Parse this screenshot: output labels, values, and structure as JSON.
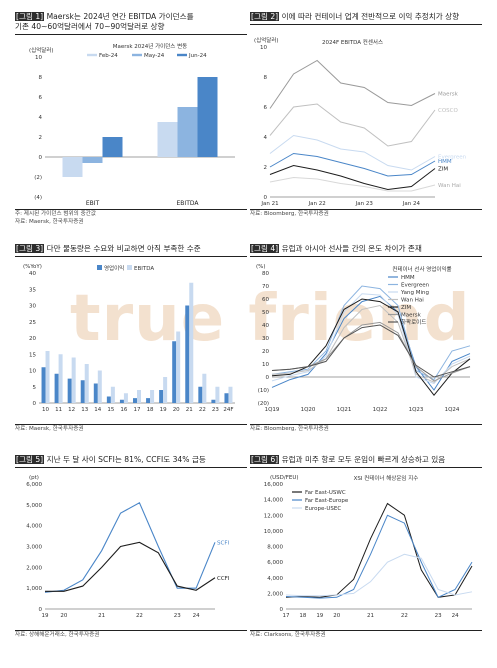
{
  "watermark": "true friend",
  "colors": {
    "dark": "#1d1d1d",
    "blue": "#4a86c8",
    "mid": "#8cb4e0",
    "light": "#c8daf0",
    "grey": "#9a9a9a",
    "lgrey": "#c0c0c0"
  },
  "panels": [
    {
      "tag": "[그림 1]",
      "title": "Maersk는 2024년 연간 EBITDA 가이던스를",
      "title2": "기존 40~60억달러에서 70~90억달러로 상향",
      "src": "주: 제시된 가이던스 범위의 중간값",
      "src2": "자료: Maersk, 한국투자증권"
    },
    {
      "tag": "[그림 2]",
      "title": "이에 따라 컨테이너 업계 전반적으로 이익 추정치가 상향",
      "src": "자료: Bloomberg, 한국투자증권"
    },
    {
      "tag": "[그림 3]",
      "title": "다만 물동량은 수요와 비교하면 아직 부족한 수준",
      "src": "자료: Maersk, 한국투자증권"
    },
    {
      "tag": "[그림 4]",
      "title": "유럽과 아시아 선사들 간의 온도 차이가 존재",
      "src": "자료: Bloomberg, 한국투자증권"
    },
    {
      "tag": "[그림 5]",
      "title": "지난 두 달 사이 SCFI는 81%, CCFI도 34% 급등",
      "src": "자료: 상해해운거래소, 한국투자증권"
    },
    {
      "tag": "[그림 6]",
      "title": "유럽과 미주 항로 모두 운임이 빠르게 상승하고 있음",
      "src": "자료: Clarksons, 한국투자증권"
    }
  ],
  "chart_data": [
    {
      "type": "bar",
      "ylabel": "(십억달러)",
      "legend_title": "Maersk 2024년 가이던스 변동",
      "categories": [
        "EBIT",
        "EBITDA"
      ],
      "ylim": [
        -4,
        10
      ],
      "yticks": [
        -4,
        -2,
        0,
        2,
        4,
        6,
        8,
        10
      ],
      "ytick_labels": [
        "(4)",
        "(2)",
        "0",
        "2",
        "4",
        "6",
        "8",
        "10"
      ],
      "series": [
        {
          "name": "Feb-24",
          "values": [
            -2.0,
            3.5
          ]
        },
        {
          "name": "May-24",
          "values": [
            -0.6,
            5.0
          ]
        },
        {
          "name": "Jun-24",
          "values": [
            2.0,
            8.0
          ]
        }
      ],
      "legend_position": "top"
    },
    {
      "type": "line",
      "ylabel": "(십억달러)",
      "subtitle": "2024F EBITDA 컨센서스",
      "ylim": [
        0,
        10
      ],
      "yticks": [
        0,
        2,
        4,
        6,
        8,
        10
      ],
      "x": [
        "Jan 21",
        "Jul 21",
        "Jan 22",
        "Jul 22",
        "Jan 23",
        "Jul 23",
        "Jan 24",
        "Jun 24"
      ],
      "xtick_labels": [
        "Jan 21",
        "Jan 22",
        "Jan 23",
        "Jan 24"
      ],
      "series": [
        {
          "name": "Maersk",
          "values": [
            5.9,
            8.2,
            9.1,
            7.6,
            7.3,
            6.3,
            6.1,
            6.9
          ]
        },
        {
          "name": "COSCO",
          "values": [
            4.1,
            6.0,
            6.2,
            5.0,
            4.6,
            3.4,
            3.7,
            5.8
          ]
        },
        {
          "name": "Evergreen",
          "values": [
            2.9,
            4.1,
            3.8,
            3.2,
            3.0,
            2.1,
            1.8,
            2.7
          ]
        },
        {
          "name": "HMM",
          "values": [
            2.0,
            2.9,
            2.7,
            2.3,
            1.9,
            1.4,
            1.5,
            2.4
          ]
        },
        {
          "name": "ZIM",
          "values": [
            1.5,
            2.1,
            1.8,
            1.4,
            0.9,
            0.5,
            0.7,
            1.9
          ]
        },
        {
          "name": "Wan Hai",
          "values": [
            1.0,
            1.3,
            1.2,
            0.9,
            0.7,
            0.4,
            0.4,
            0.8
          ]
        }
      ],
      "legend_position": "right"
    },
    {
      "type": "bar",
      "ylabel": "(%YoY)",
      "ylim": [
        0,
        40
      ],
      "yticks": [
        0,
        5,
        10,
        15,
        20,
        25,
        30,
        35,
        40
      ],
      "categories": [
        "10",
        "11",
        "12",
        "13",
        "14",
        "15",
        "16",
        "17",
        "18",
        "19",
        "20",
        "21",
        "22",
        "23",
        "24F"
      ],
      "series": [
        {
          "name": "영업이익",
          "values": [
            11,
            9,
            7.5,
            7,
            6,
            2,
            1,
            1.5,
            1.5,
            4,
            19,
            30,
            5,
            1,
            3
          ]
        },
        {
          "name": "EBITDA",
          "values": [
            16,
            15,
            14,
            12,
            10,
            5,
            3,
            4,
            4,
            8,
            22,
            37,
            9,
            5,
            5
          ]
        }
      ],
      "legend_position": "top-left"
    },
    {
      "type": "line",
      "ylabel": "(%)",
      "subtitle": "컨테이너 선사 영업이익률",
      "ylim": [
        -20,
        80
      ],
      "yticks": [
        -20,
        -10,
        0,
        10,
        20,
        30,
        40,
        50,
        60,
        70,
        80
      ],
      "ytick_labels": [
        "(20)",
        "(10)",
        "0",
        "10",
        "20",
        "30",
        "40",
        "50",
        "60",
        "70",
        "80"
      ],
      "x": [
        "1Q19",
        "3Q19",
        "1Q20",
        "3Q20",
        "1Q21",
        "3Q21",
        "1Q22",
        "3Q22",
        "1Q23",
        "3Q23",
        "1Q24",
        "2Q24"
      ],
      "xtick_labels": [
        "1Q19",
        "1Q20",
        "1Q21",
        "1Q22",
        "1Q23",
        "1Q24"
      ],
      "series": [
        {
          "name": "HMM",
          "values": [
            -8,
            -2,
            2,
            18,
            45,
            58,
            62,
            50,
            8,
            -10,
            12,
            18
          ]
        },
        {
          "name": "Evergreen",
          "values": [
            2,
            4,
            6,
            20,
            55,
            70,
            68,
            55,
            5,
            -2,
            20,
            24
          ]
        },
        {
          "name": "Yang Ming",
          "values": [
            -3,
            1,
            4,
            16,
            50,
            64,
            63,
            48,
            0,
            -5,
            10,
            16
          ]
        },
        {
          "name": "Wan Hai",
          "values": [
            2,
            3,
            5,
            14,
            38,
            52,
            55,
            42,
            2,
            -4,
            8,
            14
          ]
        },
        {
          "name": "ZIM",
          "values": [
            1,
            2,
            8,
            24,
            52,
            60,
            58,
            50,
            4,
            -14,
            3,
            14
          ]
        },
        {
          "name": "Maersk",
          "values": [
            5,
            6,
            8,
            14,
            30,
            40,
            42,
            34,
            8,
            -3,
            3,
            8
          ]
        },
        {
          "name": "하팍로이드",
          "values": [
            5,
            6,
            8,
            12,
            30,
            38,
            40,
            32,
            9,
            0,
            4,
            8
          ]
        }
      ],
      "legend_position": "top-right"
    },
    {
      "type": "line",
      "ylabel": "(pt)",
      "ylim": [
        0,
        6000
      ],
      "yticks": [
        0,
        1000,
        2000,
        3000,
        4000,
        5000,
        6000
      ],
      "ytick_labels": [
        "0",
        "1,000",
        "2,000",
        "3,000",
        "4,000",
        "5,000",
        "6,000"
      ],
      "x": [
        "2019",
        "2020",
        "2020H2",
        "2021",
        "2021H2",
        "2022",
        "2022H2",
        "2023",
        "2024",
        "2024H2"
      ],
      "xtick_labels": [
        "19",
        "20",
        "21",
        "22",
        "23",
        "24"
      ],
      "series": [
        {
          "name": "SCFI",
          "values": [
            800,
            900,
            1400,
            2800,
            4600,
            5100,
            3000,
            1000,
            1000,
            3200
          ]
        },
        {
          "name": "CCFI",
          "values": [
            850,
            850,
            1100,
            2000,
            3000,
            3200,
            2700,
            1100,
            900,
            1500
          ]
        }
      ],
      "legend_position": "right"
    },
    {
      "type": "line",
      "ylabel": "(USD/FEU)",
      "subtitle": "XSI 컨테이너 해상운임 지수",
      "ylim": [
        0,
        16000
      ],
      "yticks": [
        0,
        2000,
        4000,
        6000,
        8000,
        10000,
        12000,
        14000,
        16000
      ],
      "ytick_labels": [
        "0",
        "2,000",
        "4,000",
        "6,000",
        "8,000",
        "10,000",
        "12,000",
        "14,000",
        "16,000"
      ],
      "x": [
        "2017",
        "2018",
        "2019",
        "2020",
        "2020H2",
        "2021",
        "2021H2",
        "2022",
        "2022H2",
        "2023",
        "2024",
        "2024H2"
      ],
      "xtick_labels": [
        "17",
        "18",
        "19",
        "20",
        "21",
        "22",
        "23",
        "24"
      ],
      "series": [
        {
          "name": "Far East-USWC",
          "values": [
            1500,
            1600,
            1500,
            1800,
            3800,
            9000,
            13500,
            12000,
            5000,
            1500,
            1800,
            5500
          ]
        },
        {
          "name": "Far East-Europe",
          "values": [
            1600,
            1500,
            1400,
            1500,
            2500,
            7000,
            12000,
            11000,
            6000,
            1500,
            2500,
            6000
          ]
        },
        {
          "name": "Europe-USEC",
          "values": [
            1800,
            1700,
            1700,
            1800,
            2000,
            3500,
            6000,
            7000,
            6500,
            2500,
            1800,
            2200
          ]
        }
      ],
      "legend_position": "top-left"
    }
  ]
}
